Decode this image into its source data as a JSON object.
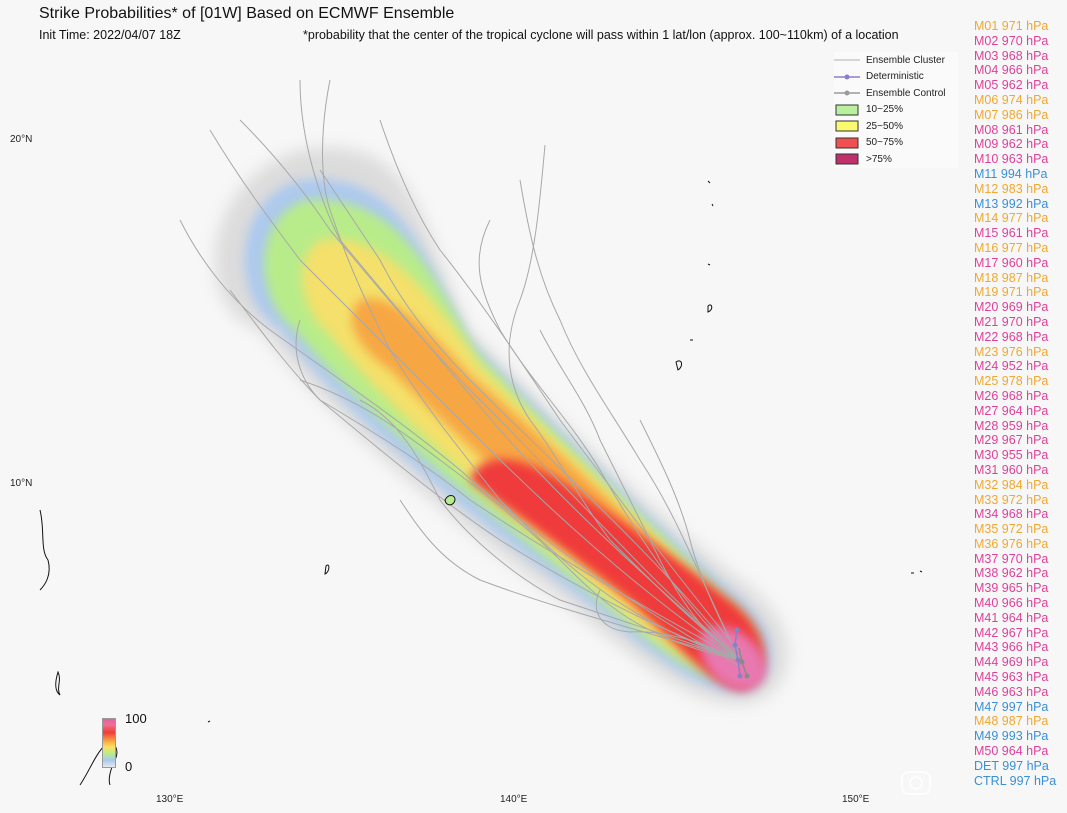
{
  "title": "Strike Probabilities* of [01W] Based on ECMWF Ensemble",
  "init_time": "Init Time: 2022/04/07 18Z",
  "note": "*probability that the center of the tropical cyclone will pass within 1 lat/lon (approx. 100~110km) of a location",
  "lat_labels": [
    "20°N",
    "10°N"
  ],
  "lon_labels": [
    "130°E",
    "140°E",
    "150°E"
  ],
  "legend": [
    {
      "label": "Ensemble Cluster",
      "kind": "line",
      "color": "#b0b0b0"
    },
    {
      "label": "Deterministic",
      "kind": "dotline",
      "color": "#8a7fc8"
    },
    {
      "label": "Ensemble Control",
      "kind": "dotline",
      "color": "#9a9a9a"
    },
    {
      "label": "10~25%",
      "kind": "box",
      "color": "#b8f0a0"
    },
    {
      "label": "25~50%",
      "kind": "box",
      "color": "#fafa6e"
    },
    {
      "label": "50~75%",
      "kind": "box",
      "color": "#f05050"
    },
    {
      "label": ">75%",
      "kind": "box",
      "color": "#c0306a"
    }
  ],
  "colorbar": {
    "max": "100",
    "min": "0"
  },
  "members": [
    {
      "text": "M01 971 hPa",
      "color": "#f0a830"
    },
    {
      "text": "M02 970 hPa",
      "color": "#e0409a"
    },
    {
      "text": "M03 968 hPa",
      "color": "#e0409a"
    },
    {
      "text": "M04 966 hPa",
      "color": "#e0409a"
    },
    {
      "text": "M05 962 hPa",
      "color": "#e0409a"
    },
    {
      "text": "M06 974 hPa",
      "color": "#f0a830"
    },
    {
      "text": "M07 986 hPa",
      "color": "#f0a830"
    },
    {
      "text": "M08 961 hPa",
      "color": "#e0409a"
    },
    {
      "text": "M09 962 hPa",
      "color": "#e0409a"
    },
    {
      "text": "M10 963 hPa",
      "color": "#e0409a"
    },
    {
      "text": "M11 994 hPa",
      "color": "#3a8fd8"
    },
    {
      "text": "M12 983 hPa",
      "color": "#f0a830"
    },
    {
      "text": "M13 992 hPa",
      "color": "#3a8fd8"
    },
    {
      "text": "M14 977 hPa",
      "color": "#f0a830"
    },
    {
      "text": "M15 961 hPa",
      "color": "#e0409a"
    },
    {
      "text": "M16 977 hPa",
      "color": "#f0a830"
    },
    {
      "text": "M17 960 hPa",
      "color": "#e0409a"
    },
    {
      "text": "M18 987 hPa",
      "color": "#f0a830"
    },
    {
      "text": "M19 971 hPa",
      "color": "#f0a830"
    },
    {
      "text": "M20 969 hPa",
      "color": "#e0409a"
    },
    {
      "text": "M21 970 hPa",
      "color": "#e0409a"
    },
    {
      "text": "M22 968 hPa",
      "color": "#e0409a"
    },
    {
      "text": "M23 976 hPa",
      "color": "#f0a830"
    },
    {
      "text": "M24 952 hPa",
      "color": "#e0409a"
    },
    {
      "text": "M25 978 hPa",
      "color": "#f0a830"
    },
    {
      "text": "M26 968 hPa",
      "color": "#e0409a"
    },
    {
      "text": "M27 964 hPa",
      "color": "#e0409a"
    },
    {
      "text": "M28 959 hPa",
      "color": "#e0409a"
    },
    {
      "text": "M29 967 hPa",
      "color": "#e0409a"
    },
    {
      "text": "M30 955 hPa",
      "color": "#e0409a"
    },
    {
      "text": "M31 960 hPa",
      "color": "#e0409a"
    },
    {
      "text": "M32 984 hPa",
      "color": "#f0a830"
    },
    {
      "text": "M33 972 hPa",
      "color": "#f0a830"
    },
    {
      "text": "M34 968 hPa",
      "color": "#e0409a"
    },
    {
      "text": "M35 972 hPa",
      "color": "#f0a830"
    },
    {
      "text": "M36 976 hPa",
      "color": "#f0a830"
    },
    {
      "text": "M37 970 hPa",
      "color": "#e0409a"
    },
    {
      "text": "M38 962 hPa",
      "color": "#e0409a"
    },
    {
      "text": "M39 965 hPa",
      "color": "#e0409a"
    },
    {
      "text": "M40 966 hPa",
      "color": "#e0409a"
    },
    {
      "text": "M41 964 hPa",
      "color": "#e0409a"
    },
    {
      "text": "M42 967 hPa",
      "color": "#e0409a"
    },
    {
      "text": "M43 966 hPa",
      "color": "#e0409a"
    },
    {
      "text": "M44 969 hPa",
      "color": "#e0409a"
    },
    {
      "text": "M45 963 hPa",
      "color": "#e0409a"
    },
    {
      "text": "M46 963 hPa",
      "color": "#e0409a"
    },
    {
      "text": "M47 997 hPa",
      "color": "#3a8fd8"
    },
    {
      "text": "M48 987 hPa",
      "color": "#f0a830"
    },
    {
      "text": "M49 993 hPa",
      "color": "#3a8fd8"
    },
    {
      "text": "M50 964 hPa",
      "color": "#e0409a"
    },
    {
      "text": "DET 997 hPa",
      "color": "#3a8fd8"
    },
    {
      "text": "CTRL 997 hPa",
      "color": "#3a8fd8"
    }
  ],
  "watermark_icon": "camera-watermark-icon"
}
